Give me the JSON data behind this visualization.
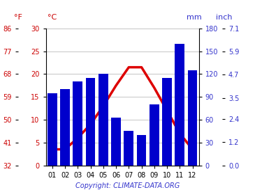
{
  "months": [
    "01",
    "02",
    "03",
    "04",
    "05",
    "06",
    "07",
    "08",
    "09",
    "10",
    "11",
    "12"
  ],
  "precipitation_mm": [
    95,
    100,
    110,
    115,
    120,
    63,
    45,
    40,
    80,
    115,
    160,
    125
  ],
  "temperature_c": [
    3.5,
    3.5,
    6.0,
    9.0,
    13.0,
    17.5,
    21.5,
    21.5,
    17.0,
    12.0,
    7.0,
    3.5
  ],
  "bar_color": "#0000cc",
  "line_color": "#dd0000",
  "left_axis_color": "#cc0000",
  "right_axis_color": "#3333cc",
  "copyright": "Copyright: CLIMATE-DATA.ORG",
  "temp_ylim": [
    0,
    30
  ],
  "precip_ylim": [
    0,
    180
  ],
  "temp_ticks_c": [
    0,
    5,
    10,
    15,
    20,
    25,
    30
  ],
  "temp_ticks_f": [
    32,
    41,
    50,
    59,
    68,
    77,
    86
  ],
  "precip_ticks_mm": [
    0,
    30,
    60,
    90,
    120,
    150,
    180
  ],
  "precip_ticks_inch": [
    0.0,
    1.2,
    2.4,
    3.5,
    4.7,
    5.9,
    7.1
  ],
  "bg_color": "#ffffff",
  "grid_color": "#bbbbbb",
  "line_width": 2.5,
  "bar_width": 0.75
}
